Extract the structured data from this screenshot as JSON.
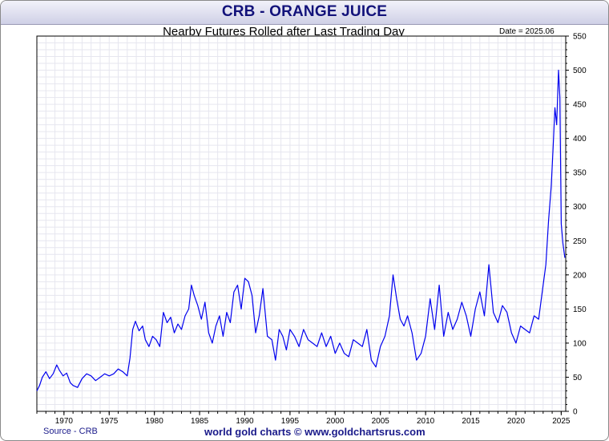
{
  "header": {
    "title": "CRB - ORANGE JUICE",
    "subtitle": "Nearby Futures Rolled after Last Trading Day",
    "date_label": "Date = 2025.06"
  },
  "footer": {
    "source": "Source - CRB",
    "credit": "world gold charts © www.goldchartsrus.com"
  },
  "colors": {
    "line": "#0000ee",
    "title": "#12127a",
    "grid": "#e6e6ef"
  },
  "chart_data": {
    "type": "line",
    "title": "CRB - ORANGE JUICE",
    "subtitle": "Nearby Futures Rolled after Last Trading Day",
    "xlim": [
      1967.0,
      2025.5
    ],
    "ylim": [
      0,
      550
    ],
    "x_ticks": [
      1970,
      1975,
      1980,
      1985,
      1990,
      1995,
      2000,
      2005,
      2010,
      2015,
      2020,
      2025
    ],
    "y_ticks": [
      0,
      50,
      100,
      150,
      200,
      250,
      300,
      350,
      400,
      450,
      500,
      550
    ],
    "grid": true,
    "y_axis_side": "right",
    "series": [
      {
        "name": "",
        "x": [
          1967.0,
          1967.3,
          1967.6,
          1968.0,
          1968.4,
          1968.8,
          1969.2,
          1969.5,
          1969.9,
          1970.3,
          1970.7,
          1971.0,
          1971.5,
          1972.0,
          1972.5,
          1973.0,
          1973.5,
          1974.0,
          1974.5,
          1975.0,
          1975.5,
          1976.0,
          1976.5,
          1977.0,
          1977.3,
          1977.6,
          1977.9,
          1978.3,
          1978.7,
          1979.0,
          1979.4,
          1979.8,
          1980.2,
          1980.6,
          1981.0,
          1981.4,
          1981.8,
          1982.2,
          1982.6,
          1983.0,
          1983.4,
          1983.8,
          1984.1,
          1984.4,
          1984.8,
          1985.2,
          1985.6,
          1986.0,
          1986.4,
          1986.8,
          1987.2,
          1987.6,
          1988.0,
          1988.4,
          1988.8,
          1989.2,
          1989.6,
          1990.0,
          1990.4,
          1990.8,
          1991.2,
          1991.6,
          1992.0,
          1992.5,
          1993.0,
          1993.4,
          1993.8,
          1994.2,
          1994.6,
          1995.0,
          1995.5,
          1996.0,
          1996.5,
          1997.0,
          1997.5,
          1998.0,
          1998.5,
          1999.0,
          1999.5,
          2000.0,
          2000.5,
          2001.0,
          2001.5,
          2002.0,
          2002.5,
          2003.0,
          2003.5,
          2004.0,
          2004.5,
          2005.0,
          2005.5,
          2006.0,
          2006.4,
          2006.8,
          2007.2,
          2007.6,
          2008.0,
          2008.5,
          2009.0,
          2009.5,
          2010.0,
          2010.5,
          2011.0,
          2011.5,
          2012.0,
          2012.5,
          2013.0,
          2013.5,
          2014.0,
          2014.5,
          2015.0,
          2015.5,
          2016.0,
          2016.5,
          2017.0,
          2017.5,
          2018.0,
          2018.5,
          2019.0,
          2019.5,
          2020.0,
          2020.5,
          2021.0,
          2021.5,
          2022.0,
          2022.5,
          2023.0,
          2023.3,
          2023.6,
          2023.9,
          2024.1,
          2024.3,
          2024.5,
          2024.7,
          2024.85,
          2025.0,
          2025.2,
          2025.4
        ],
        "values": [
          30,
          38,
          50,
          58,
          48,
          55,
          68,
          60,
          52,
          56,
          42,
          38,
          35,
          48,
          55,
          52,
          45,
          50,
          55,
          52,
          55,
          62,
          58,
          52,
          78,
          120,
          132,
          118,
          125,
          105,
          95,
          110,
          105,
          95,
          145,
          130,
          138,
          115,
          128,
          120,
          140,
          150,
          185,
          170,
          155,
          135,
          160,
          115,
          100,
          125,
          140,
          110,
          145,
          130,
          175,
          185,
          150,
          195,
          190,
          170,
          115,
          140,
          180,
          110,
          105,
          75,
          120,
          110,
          90,
          120,
          110,
          95,
          120,
          105,
          100,
          95,
          115,
          95,
          110,
          85,
          100,
          85,
          80,
          105,
          100,
          95,
          120,
          75,
          65,
          95,
          110,
          140,
          200,
          165,
          135,
          125,
          140,
          115,
          75,
          85,
          110,
          165,
          120,
          185,
          110,
          145,
          120,
          135,
          160,
          140,
          110,
          150,
          175,
          140,
          215,
          145,
          130,
          155,
          145,
          115,
          100,
          125,
          120,
          115,
          140,
          135,
          185,
          215,
          280,
          330,
          385,
          445,
          420,
          500,
          460,
          275,
          245,
          225
        ]
      }
    ]
  }
}
